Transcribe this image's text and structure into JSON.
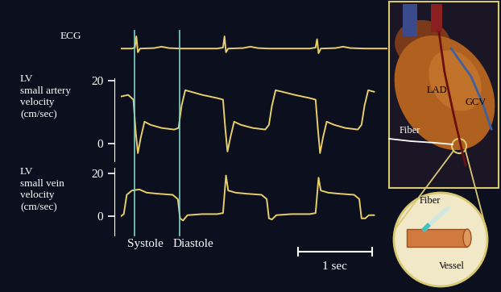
{
  "chart_data": [
    {
      "type": "line",
      "y_label": "ECG",
      "x": [
        0,
        0.15,
        0.19,
        0.21,
        0.23,
        0.26,
        0.45,
        0.55,
        0.65,
        0.8,
        1.3,
        1.38,
        1.4,
        1.42,
        1.45,
        1.65,
        1.75,
        1.85,
        2.0,
        2.55,
        2.63,
        2.65,
        2.67,
        2.7,
        2.9,
        3.0,
        3.1,
        3.3,
        3.6
      ],
      "values": [
        0,
        0,
        0.1,
        1.3,
        -0.4,
        0,
        0.05,
        0.2,
        0.05,
        0,
        0,
        0.1,
        1.3,
        -0.4,
        0,
        0.05,
        0.2,
        0.05,
        0,
        0,
        0.1,
        1.0,
        -0.5,
        0,
        0.05,
        0.2,
        0.05,
        0,
        0
      ],
      "color": "#e8cf6a",
      "xlim": [
        0,
        3.6
      ],
      "ylim": [
        -3,
        2.6
      ],
      "tick_labels": false
    },
    {
      "type": "line",
      "y_label": "LV\nsmall artery\nvelocity\n(cm/sec)",
      "x": [
        0,
        0.1,
        0.17,
        0.2,
        0.23,
        0.27,
        0.32,
        0.4,
        0.55,
        0.72,
        0.78,
        0.82,
        0.87,
        0.95,
        1.1,
        1.3,
        1.38,
        1.41,
        1.44,
        1.48,
        1.53,
        1.62,
        1.78,
        1.95,
        2.0,
        2.04,
        2.09,
        2.18,
        2.35,
        2.55,
        2.63,
        2.66,
        2.69,
        2.73,
        2.78,
        2.88,
        3.03,
        3.2,
        3.25,
        3.29,
        3.34,
        3.42
      ],
      "values": [
        15,
        15.5,
        14,
        4,
        -3,
        2,
        7,
        6,
        5,
        4.5,
        5,
        12,
        17,
        16.5,
        15.5,
        14.5,
        14,
        5,
        -2.5,
        2,
        7,
        6,
        5,
        4.5,
        6,
        12,
        17,
        16.5,
        15.5,
        14.5,
        14,
        5,
        -3,
        2,
        7,
        6,
        5,
        4.5,
        6,
        12,
        17,
        16.5
      ],
      "color": "#e8cf6a",
      "xlim": [
        0,
        3.6
      ],
      "ylim": [
        -5.6,
        20.8
      ],
      "yticks": [
        0,
        20
      ],
      "tick_labels": "y"
    },
    {
      "type": "line",
      "y_label": "LV\nsmall vein\nvelocity\n(cm/sec)",
      "x": [
        0,
        0.04,
        0.08,
        0.15,
        0.25,
        0.35,
        0.5,
        0.7,
        0.77,
        0.8,
        0.84,
        0.9,
        1.1,
        1.3,
        1.38,
        1.42,
        1.45,
        1.55,
        1.7,
        1.9,
        1.97,
        2.0,
        2.04,
        2.1,
        2.3,
        2.55,
        2.63,
        2.67,
        2.7,
        2.8,
        2.95,
        3.15,
        3.22,
        3.25,
        3.3,
        3.35,
        3.42
      ],
      "values": [
        0,
        1,
        10,
        12,
        12.5,
        11,
        10.5,
        10,
        8,
        -1,
        -2,
        0.5,
        1,
        1,
        1.5,
        19,
        12,
        11,
        10.5,
        10,
        8,
        -1,
        -1.5,
        0.5,
        1,
        1,
        1.5,
        18,
        12,
        11,
        10.5,
        10,
        8,
        -1,
        -1,
        0.5,
        0.5
      ],
      "color": "#e8cf6a",
      "xlim": [
        0,
        3.6
      ],
      "ylim": [
        -9,
        22.6
      ],
      "yticks": [
        0,
        20
      ],
      "tick_labels": "y"
    }
  ],
  "annotations": [
    {
      "text": "Systole",
      "x": 0.18
    },
    {
      "text": "Diastole",
      "x": 0.79
    }
  ],
  "scale_bar": {
    "label": "1 sec",
    "length": 1
  },
  "illustration": {
    "heart_labels": [
      "LAD",
      "GCV",
      "Fiber"
    ],
    "detail_labels": [
      "Fiber",
      "Vessel"
    ]
  }
}
